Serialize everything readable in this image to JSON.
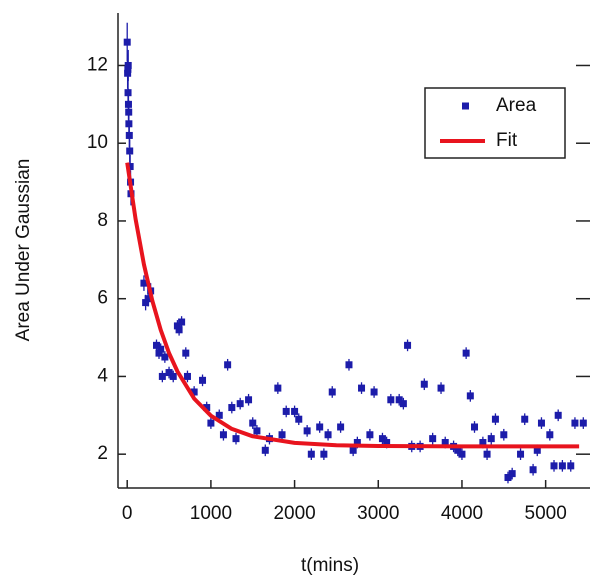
{
  "chart_data": {
    "type": "scatter",
    "xlabel": "t(mins)",
    "ylabel": "Area Under Gaussian",
    "xlim": [
      -110,
      5530
    ],
    "ylim": [
      1.13,
      13.35
    ],
    "xticks": [
      0,
      1000,
      2000,
      3000,
      4000,
      5000
    ],
    "yticks": [
      2,
      4,
      6,
      8,
      10,
      12
    ],
    "series": [
      {
        "name": "Area",
        "type": "scatter",
        "color": "#1c1caa",
        "x": [
          0,
          5,
          10,
          15,
          20,
          25,
          30,
          35,
          40,
          45,
          8,
          12,
          18,
          200,
          250,
          220,
          280,
          350,
          400,
          450,
          380,
          420,
          500,
          550,
          600,
          650,
          620,
          700,
          720,
          800,
          900,
          950,
          1000,
          1100,
          1150,
          1200,
          1250,
          1300,
          1350,
          1450,
          1500,
          1550,
          1650,
          1700,
          1800,
          1850,
          1900,
          2000,
          2050,
          2150,
          2200,
          2300,
          2350,
          2400,
          2450,
          2550,
          2650,
          2700,
          2750,
          2800,
          2900,
          2950,
          3050,
          3100,
          3150,
          3250,
          3300,
          3350,
          3400,
          3500,
          3550,
          3650,
          3750,
          3800,
          3900,
          3950,
          4000,
          4050,
          4100,
          4150,
          4250,
          4300,
          4350,
          4400,
          4500,
          4550,
          4600,
          4700,
          4750,
          4850,
          4900,
          4950,
          5050,
          5100,
          5150,
          5200,
          5300,
          5350,
          5450
        ],
        "values": [
          12.6,
          11.8,
          11.3,
          11.0,
          10.5,
          10.2,
          9.8,
          9.4,
          9.0,
          8.7,
          11.9,
          12.0,
          10.8,
          6.4,
          6.0,
          5.9,
          6.2,
          4.8,
          4.7,
          4.5,
          4.6,
          4.0,
          4.1,
          4.0,
          5.3,
          5.4,
          5.2,
          4.6,
          4.0,
          3.6,
          3.9,
          3.2,
          2.8,
          3.0,
          2.5,
          4.3,
          3.2,
          2.4,
          3.3,
          3.4,
          2.8,
          2.6,
          2.1,
          2.4,
          3.7,
          2.5,
          3.1,
          3.1,
          2.9,
          2.6,
          2.0,
          2.7,
          2.0,
          2.5,
          3.6,
          2.7,
          4.3,
          2.1,
          2.3,
          3.7,
          2.5,
          3.6,
          2.4,
          2.3,
          3.4,
          3.4,
          3.3,
          4.8,
          2.2,
          2.2,
          3.8,
          2.4,
          3.7,
          2.3,
          2.2,
          2.1,
          2.0,
          4.6,
          3.5,
          2.7,
          2.3,
          2.0,
          2.4,
          2.9,
          2.5,
          1.4,
          1.5,
          2.0,
          2.9,
          1.6,
          2.1,
          2.8,
          2.5,
          1.7,
          3.0,
          1.7,
          1.7,
          2.8,
          2.8
        ],
        "errors": [
          0.5,
          0.4,
          0.4,
          0.4,
          0.3,
          0.3,
          0.3,
          0.3,
          0.3,
          0.3,
          0.4,
          0.4,
          0.3,
          0.2,
          0.2,
          0.2,
          0.2,
          0.15,
          0.15,
          0.15,
          0.15,
          0.15,
          0.15,
          0.15,
          0.15,
          0.15,
          0.15,
          0.15,
          0.15,
          0.15,
          0.15,
          0.15,
          0.15,
          0.15,
          0.15,
          0.15,
          0.15,
          0.15,
          0.15,
          0.15,
          0.15,
          0.15,
          0.15,
          0.15,
          0.15,
          0.15,
          0.15,
          0.15,
          0.15,
          0.15,
          0.15,
          0.15,
          0.15,
          0.15,
          0.15,
          0.15,
          0.15,
          0.15,
          0.15,
          0.15,
          0.15,
          0.15,
          0.15,
          0.15,
          0.15,
          0.15,
          0.15,
          0.15,
          0.15,
          0.15,
          0.15,
          0.15,
          0.15,
          0.15,
          0.15,
          0.15,
          0.15,
          0.15,
          0.15,
          0.15,
          0.15,
          0.15,
          0.15,
          0.15,
          0.15,
          0.15,
          0.15,
          0.15,
          0.15,
          0.15,
          0.15,
          0.15,
          0.15,
          0.15,
          0.15,
          0.15,
          0.15,
          0.15,
          0.15
        ]
      },
      {
        "name": "Fit",
        "type": "line",
        "color": "#e8141e",
        "x": [
          0,
          100,
          200,
          300,
          400,
          500,
          600,
          800,
          1000,
          1250,
          1500,
          2000,
          2500,
          3000,
          4000,
          5400
        ],
        "values": [
          9.5,
          8.05,
          6.88,
          5.95,
          5.2,
          4.6,
          4.13,
          3.43,
          2.99,
          2.65,
          2.46,
          2.29,
          2.23,
          2.21,
          2.2,
          2.2
        ]
      }
    ]
  }
}
